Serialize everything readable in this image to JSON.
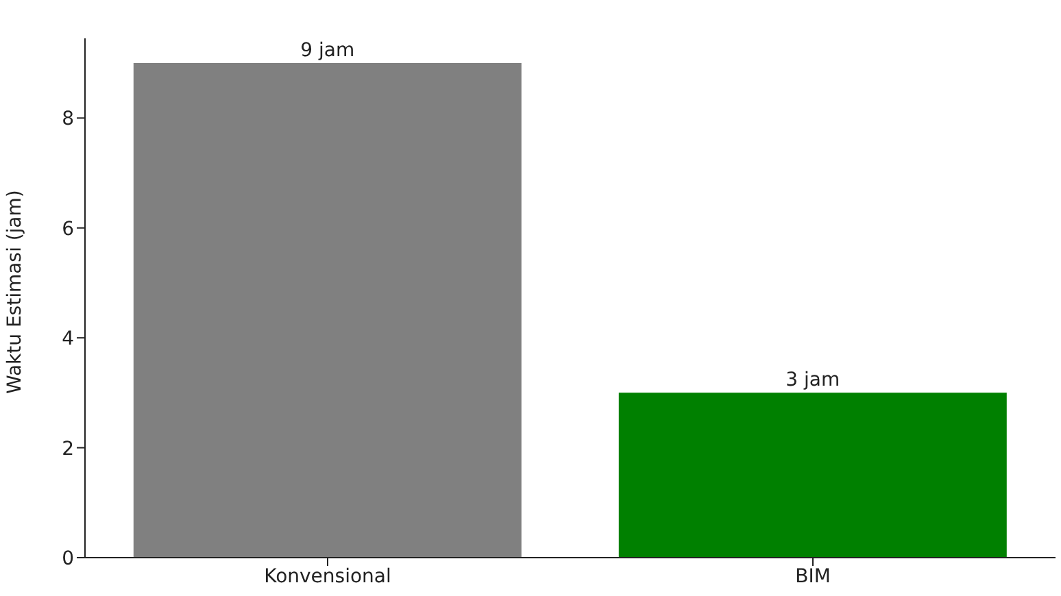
{
  "chart_data": {
    "type": "bar",
    "ylabel": "Waktu Estimasi (jam)",
    "categories": [
      "Konvensional",
      "BIM"
    ],
    "values": [
      9,
      3
    ],
    "colors": [
      "#808080",
      "#008000"
    ],
    "value_labels": [
      "9 jam",
      "3 jam"
    ],
    "ylim": [
      0,
      9.45
    ],
    "yticks": [
      0,
      2,
      4,
      6,
      8
    ],
    "grid": false
  }
}
